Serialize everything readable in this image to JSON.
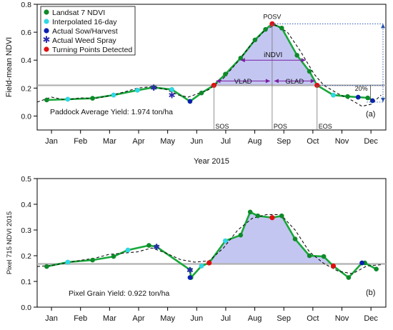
{
  "colors": {
    "green": "#18a83a",
    "dark_green_point": "#0f8a2a",
    "cyan": "#2fd8e8",
    "blue": "#0a1fb0",
    "red": "#e01010",
    "shade": "#c4c6f2",
    "gray_line": "#b0b0b0",
    "purple": "#7a1fa0",
    "dotted_blue": "#2050b0"
  },
  "chart_data": [
    {
      "type": "line",
      "panel_label": "(a)",
      "ylabel": "Field-mean NDVI",
      "xlabel": "Year 2015",
      "ylim": [
        -0.1,
        0.8
      ],
      "xlim": [
        0,
        365
      ],
      "yticks": [
        "0.0",
        "0.2",
        "0.4",
        "0.6",
        "0.8"
      ],
      "x_tick_labels": [
        "Jan",
        "Feb",
        "Mar",
        "Apr",
        "May",
        "Jun",
        "Jul",
        "Aug",
        "Sep",
        "Oct",
        "Nov",
        "Dec"
      ],
      "grid": false,
      "legend_position": "top-left",
      "legend": [
        {
          "label": "Landsat 7 NDVI",
          "marker": "green-dot"
        },
        {
          "label": "Interpolated 16-day",
          "marker": "cyan-dot"
        },
        {
          "label": "Actual Sow/Harvest",
          "marker": "blue-dot"
        },
        {
          "label": "Actual Weed Spray",
          "marker": "blue-star"
        },
        {
          "label": "Turning Points Detected",
          "marker": "red-dot"
        }
      ],
      "threshold": 0.22,
      "yield_text": "Paddock Average Yield: 1.974 ton/ha",
      "annotations": {
        "posv": "POSV",
        "indvi": "iNDVI",
        "vlad": "VLAD",
        "glad": "GLAD",
        "sos": "SOS",
        "pos": "POS",
        "eos": "EOS",
        "pct": "20%"
      },
      "phenology": {
        "sos": 185,
        "pos": 246,
        "eos": 293
      },
      "series": [
        {
          "name": "Landsat 7 NDVI",
          "style": "solid-green",
          "x": [
            10,
            32,
            58,
            80,
            105,
            122,
            141,
            160,
            172,
            185,
            197,
            213,
            228,
            239,
            246,
            256,
            272,
            285,
            293,
            310,
            325,
            336,
            346,
            351
          ],
          "y": [
            0.115,
            0.12,
            0.127,
            0.15,
            0.185,
            0.205,
            0.19,
            0.105,
            0.165,
            0.22,
            0.3,
            0.415,
            0.545,
            0.62,
            0.66,
            0.63,
            0.435,
            0.32,
            0.22,
            0.15,
            0.14,
            0.135,
            0.13,
            0.11
          ]
        },
        {
          "name": "Fitted curve",
          "style": "dashed-black",
          "x": [
            0,
            15,
            30,
            45,
            60,
            75,
            90,
            105,
            120,
            135,
            148,
            158,
            168,
            180,
            195,
            210,
            225,
            240,
            250,
            262,
            275,
            290,
            300,
            315,
            330,
            340,
            350,
            360
          ],
          "y": [
            0.1,
            0.135,
            0.115,
            0.13,
            0.125,
            0.145,
            0.17,
            0.2,
            0.21,
            0.19,
            0.15,
            0.135,
            0.16,
            0.19,
            0.27,
            0.39,
            0.52,
            0.625,
            0.65,
            0.6,
            0.47,
            0.3,
            0.22,
            0.16,
            0.11,
            0.07,
            0.085,
            0.15
          ]
        }
      ],
      "points": {
        "cyan": [
          [
            32,
            0.12
          ],
          [
            80,
            0.15
          ],
          [
            105,
            0.185
          ],
          [
            141,
            0.19
          ],
          [
            310,
            0.15
          ]
        ],
        "blue": [
          [
            160,
            0.105
          ],
          [
            336,
            0.135
          ],
          [
            351,
            0.11
          ]
        ],
        "star": [
          [
            122,
            0.205
          ],
          [
            141,
            0.15
          ]
        ],
        "red": [
          [
            185,
            0.22
          ],
          [
            246,
            0.66
          ],
          [
            293,
            0.22
          ]
        ]
      }
    },
    {
      "type": "line",
      "panel_label": "(b)",
      "ylabel": "Pixel 715 NDVI 2015",
      "ylim": [
        0,
        0.5
      ],
      "xlim": [
        0,
        365
      ],
      "yticks": [
        "0.0",
        "0.1",
        "0.2",
        "0.3",
        "0.4",
        "0.5"
      ],
      "x_tick_labels": [
        "Jan",
        "Feb",
        "Mar",
        "Apr",
        "May",
        "Jun",
        "Jul",
        "Aug",
        "Sep",
        "Oct",
        "Nov",
        "Dec"
      ],
      "grid": false,
      "threshold": 0.168,
      "yield_text": "Pixel Grain Yield: 0.922 ton/ha",
      "series": [
        {
          "name": "Landsat 7 NDVI",
          "style": "solid-green",
          "x": [
            10,
            32,
            58,
            80,
            95,
            117,
            125,
            160,
            161,
            172,
            180,
            197,
            213,
            223,
            231,
            246,
            256,
            270,
            285,
            300,
            310,
            326,
            340,
            343,
            355
          ],
          "y": [
            0.158,
            0.175,
            0.183,
            0.197,
            0.222,
            0.24,
            0.235,
            0.145,
            0.115,
            0.16,
            0.172,
            0.258,
            0.28,
            0.37,
            0.355,
            0.348,
            0.355,
            0.265,
            0.2,
            0.197,
            0.16,
            0.115,
            0.172,
            0.172,
            0.148
          ]
        },
        {
          "name": "Fitted curve",
          "style": "dashed-black",
          "x": [
            0,
            15,
            30,
            45,
            60,
            75,
            90,
            105,
            120,
            135,
            150,
            165,
            180,
            195,
            210,
            225,
            240,
            255,
            270,
            285,
            300,
            315,
            330,
            345,
            360
          ],
          "y": [
            0.158,
            0.162,
            0.172,
            0.182,
            0.19,
            0.205,
            0.21,
            0.215,
            0.23,
            0.21,
            0.185,
            0.175,
            0.18,
            0.23,
            0.3,
            0.345,
            0.36,
            0.36,
            0.3,
            0.215,
            0.17,
            0.14,
            0.13,
            0.16,
            0.165
          ]
        }
      ],
      "points": {
        "cyan": [
          [
            32,
            0.175
          ],
          [
            95,
            0.222
          ],
          [
            172,
            0.16
          ],
          [
            197,
            0.258
          ]
        ],
        "blue": [
          [
            160,
            0.115
          ],
          [
            340,
            0.172
          ]
        ],
        "star": [
          [
            125,
            0.235
          ],
          [
            160,
            0.145
          ]
        ],
        "red": [
          [
            180,
            0.172
          ],
          [
            246,
            0.348
          ],
          [
            310,
            0.16
          ]
        ]
      }
    }
  ]
}
